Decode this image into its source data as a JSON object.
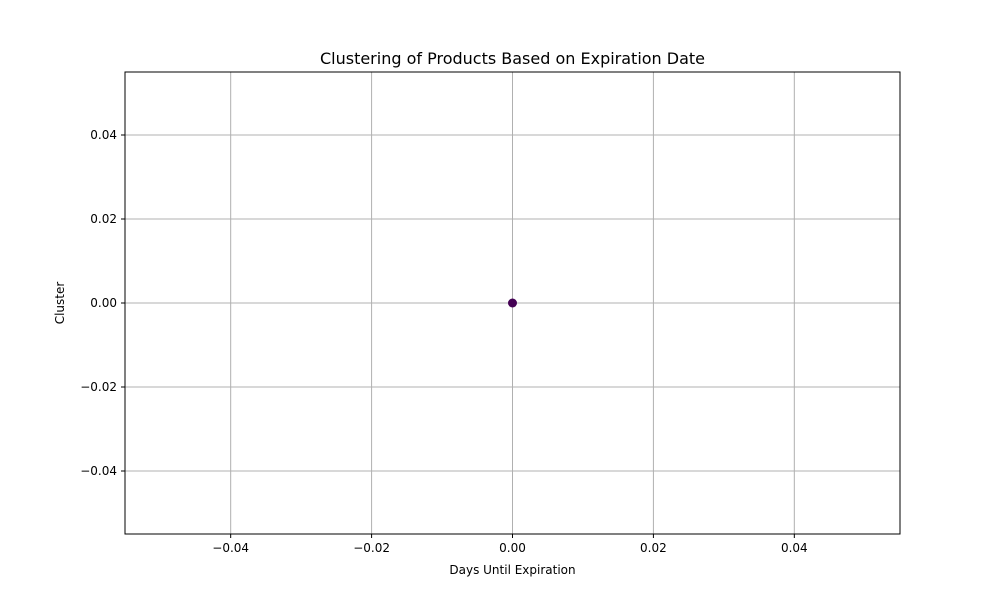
{
  "chart_data": {
    "type": "scatter",
    "title": "Clustering of Products Based on Expiration Date",
    "xlabel": "Days Until Expiration",
    "ylabel": "Cluster",
    "xlim": [
      -0.055,
      0.055
    ],
    "ylim": [
      -0.055,
      0.055
    ],
    "xticks": [
      -0.04,
      -0.02,
      0.0,
      0.02,
      0.04
    ],
    "xtick_labels": [
      "−0.04",
      "−0.02",
      "0.00",
      "0.02",
      "0.04"
    ],
    "yticks": [
      -0.04,
      -0.02,
      0.0,
      0.02,
      0.04
    ],
    "ytick_labels": [
      "−0.04",
      "−0.02",
      "0.00",
      "0.02",
      "0.04"
    ],
    "grid": true,
    "points": [
      {
        "x": 0.0,
        "y": 0.0,
        "cluster": 0
      }
    ],
    "colors": {
      "point": "#440154",
      "grid": "#b0b0b0",
      "axes": "#000000"
    }
  }
}
